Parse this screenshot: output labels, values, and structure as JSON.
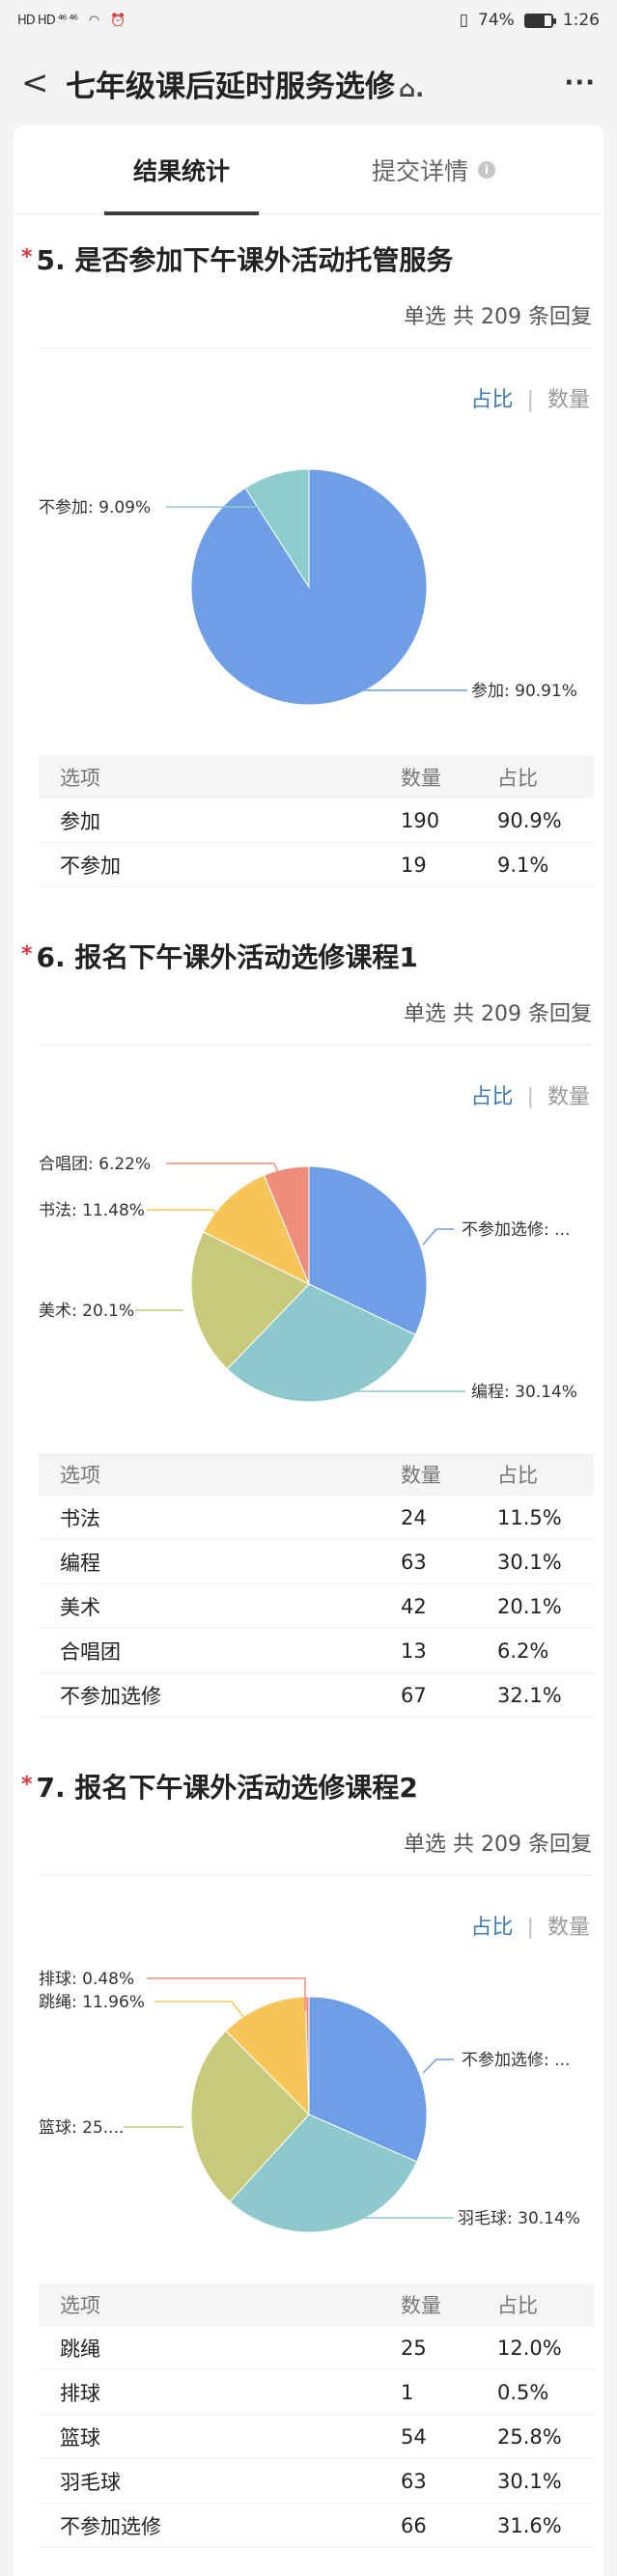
{
  "status": {
    "left": "HD HD ⁴⁶ ⁴⁶",
    "battery": "74%",
    "time": "1:26"
  },
  "header": {
    "back": "<",
    "title": "七年级课后延时服务选修",
    "more": "···"
  },
  "tabs": [
    {
      "label": "结果统计",
      "active": true
    },
    {
      "label": "提交详情",
      "active": false
    }
  ],
  "labels": {
    "col_option": "选项",
    "col_count": "数量",
    "col_percent": "占比",
    "toggle_percent": "占比",
    "toggle_count": "数量",
    "toggle_sep": "|"
  },
  "questions": [
    {
      "title": "5. 是否参加下午课外活动托管服务",
      "meta": "单选  共 209 条回复",
      "rows": [
        {
          "option": "参加",
          "count": "190",
          "percent": "90.9%"
        },
        {
          "option": "不参加",
          "count": "19",
          "percent": "9.1%"
        }
      ],
      "pie_labels": [
        {
          "text": "不参加: 9.09%",
          "color": "#8dcccc"
        },
        {
          "text": "参加: 90.91%",
          "color": "#6e9ee6"
        }
      ]
    },
    {
      "title": "6. 报名下午课外活动选修课程1",
      "meta": "单选  共 209 条回复",
      "rows": [
        {
          "option": "书法",
          "count": "24",
          "percent": "11.5%"
        },
        {
          "option": "编程",
          "count": "63",
          "percent": "30.1%"
        },
        {
          "option": "美术",
          "count": "42",
          "percent": "20.1%"
        },
        {
          "option": "合唱团",
          "count": "13",
          "percent": "6.2%"
        },
        {
          "option": "不参加选修",
          "count": "67",
          "percent": "32.1%"
        }
      ],
      "pie_labels": [
        {
          "text": "合唱团: 6.22%",
          "color": "#ef8c7a"
        },
        {
          "text": "书法: 11.48%",
          "color": "#f5c55a"
        },
        {
          "text": "美术: 20.1%",
          "color": "#c8c97a"
        },
        {
          "text": "不参加选修: ...",
          "color": "#6e9ee6"
        },
        {
          "text": "编程: 30.14%",
          "color": "#8cc8cc"
        }
      ]
    },
    {
      "title": "7. 报名下午课外活动选修课程2",
      "meta": "单选  共 209 条回复",
      "rows": [
        {
          "option": "跳绳",
          "count": "25",
          "percent": "12.0%"
        },
        {
          "option": "排球",
          "count": "1",
          "percent": "0.5%"
        },
        {
          "option": "篮球",
          "count": "54",
          "percent": "25.8%"
        },
        {
          "option": "羽毛球",
          "count": "63",
          "percent": "30.1%"
        },
        {
          "option": "不参加选修",
          "count": "66",
          "percent": "31.6%"
        }
      ],
      "pie_labels": [
        {
          "text": "排球: 0.48%",
          "color": "#ef8c7a"
        },
        {
          "text": "跳绳: 11.96%",
          "color": "#f5c55a"
        },
        {
          "text": "篮球: 25....",
          "color": "#c8c97a"
        },
        {
          "text": "不参加选修: ...",
          "color": "#6e9ee6"
        },
        {
          "text": "羽毛球: 30.14%",
          "color": "#8cc8cc"
        }
      ]
    }
  ],
  "chart_data": [
    {
      "type": "pie",
      "categories": [
        "参加",
        "不参加"
      ],
      "values": [
        90.91,
        9.09
      ],
      "colors": [
        "#6e9ee6",
        "#8dcccc"
      ]
    },
    {
      "type": "pie",
      "categories": [
        "不参加选修",
        "编程",
        "美术",
        "书法",
        "合唱团"
      ],
      "values": [
        32.06,
        30.14,
        20.1,
        11.48,
        6.22
      ],
      "colors": [
        "#6e9ee6",
        "#8cc8cc",
        "#c8c97a",
        "#f5c55a",
        "#ef8c7a"
      ]
    },
    {
      "type": "pie",
      "categories": [
        "不参加选修",
        "羽毛球",
        "篮球",
        "跳绳",
        "排球"
      ],
      "values": [
        31.58,
        30.14,
        25.84,
        11.96,
        0.48
      ],
      "colors": [
        "#6e9ee6",
        "#8cc8cc",
        "#c8c97a",
        "#f5c55a",
        "#ef8c7a"
      ]
    }
  ]
}
